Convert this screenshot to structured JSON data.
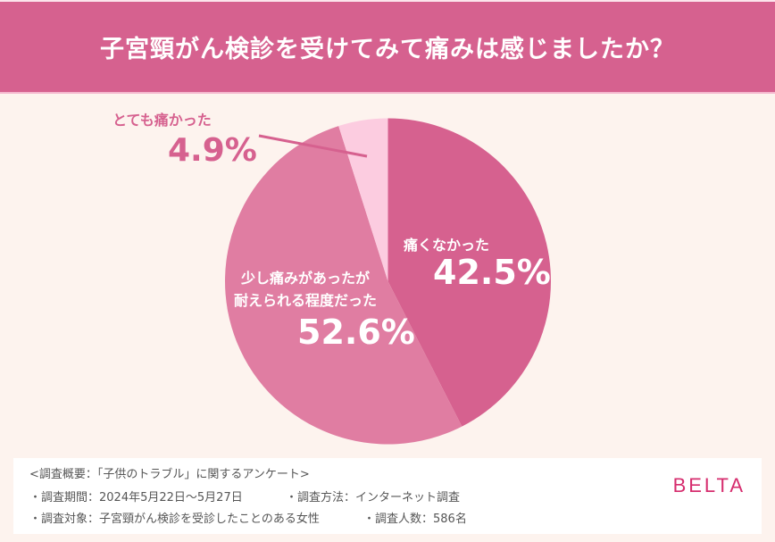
{
  "title": "子宮頸がん検診を受けてみて痛みは感じましたか？",
  "colors": {
    "header": "#D6618F",
    "background": "#FDF3EE",
    "slice_not_painful": "#D6618F",
    "slice_slightly": "#E07DA2",
    "slice_very": "#FCCCE0",
    "brand": "#D62D6E"
  },
  "labels": {
    "very_painful": "とても痛かった",
    "very_painful_pct": "4.9%",
    "not_painful": "痛くなかった",
    "not_painful_pct": "42.5%",
    "slightly_line1": "少し痛みがあったが",
    "slightly_line2": "耐えられる程度だった",
    "slightly_pct": "52.6%"
  },
  "survey": {
    "overview": "<調査概要：「子供のトラブル」に関するアンケート>",
    "period": "・調査期間：2024年5月22日〜5月27日",
    "method": "・調査方法：インターネット調査",
    "target": "・調査対象：子宮頸がん検診を受診したことのある女性",
    "count": "・調査人数：586名"
  },
  "brand": "BELTA",
  "chart_data": {
    "type": "pie",
    "title": "子宮頸がん検診を受けてみて痛みは感じましたか？",
    "categories": [
      "痛くなかった",
      "少し痛みがあったが耐えられる程度だった",
      "とても痛かった"
    ],
    "values": [
      42.5,
      52.6,
      4.9
    ],
    "unit": "%",
    "start_angle": "12 o'clock, clockwise",
    "colors": [
      "#D6618F",
      "#E07DA2",
      "#FCCCE0"
    ],
    "legend": "none (direct labels)",
    "n": 586
  }
}
